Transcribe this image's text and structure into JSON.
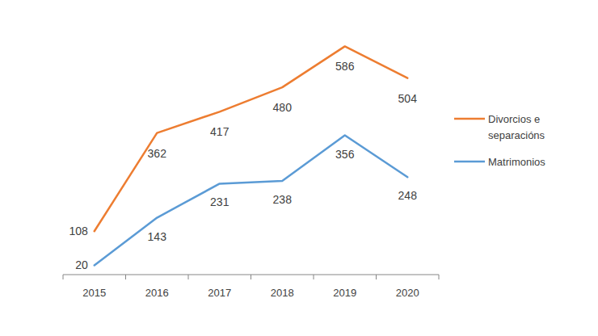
{
  "chart_data": {
    "type": "line",
    "categories": [
      "2015",
      "2016",
      "2017",
      "2018",
      "2019",
      "2020"
    ],
    "series": [
      {
        "name": "Divorcios e separacións",
        "color": "#ED7D31",
        "values": [
          108,
          362,
          417,
          480,
          586,
          504
        ]
      },
      {
        "name": "Matrimonios",
        "color": "#5B9BD5",
        "values": [
          20,
          143,
          231,
          238,
          356,
          248
        ]
      }
    ],
    "ylim": [
      0,
      600
    ],
    "data_labels": true,
    "tick_labels": "x",
    "legend": "right",
    "grid": false
  }
}
